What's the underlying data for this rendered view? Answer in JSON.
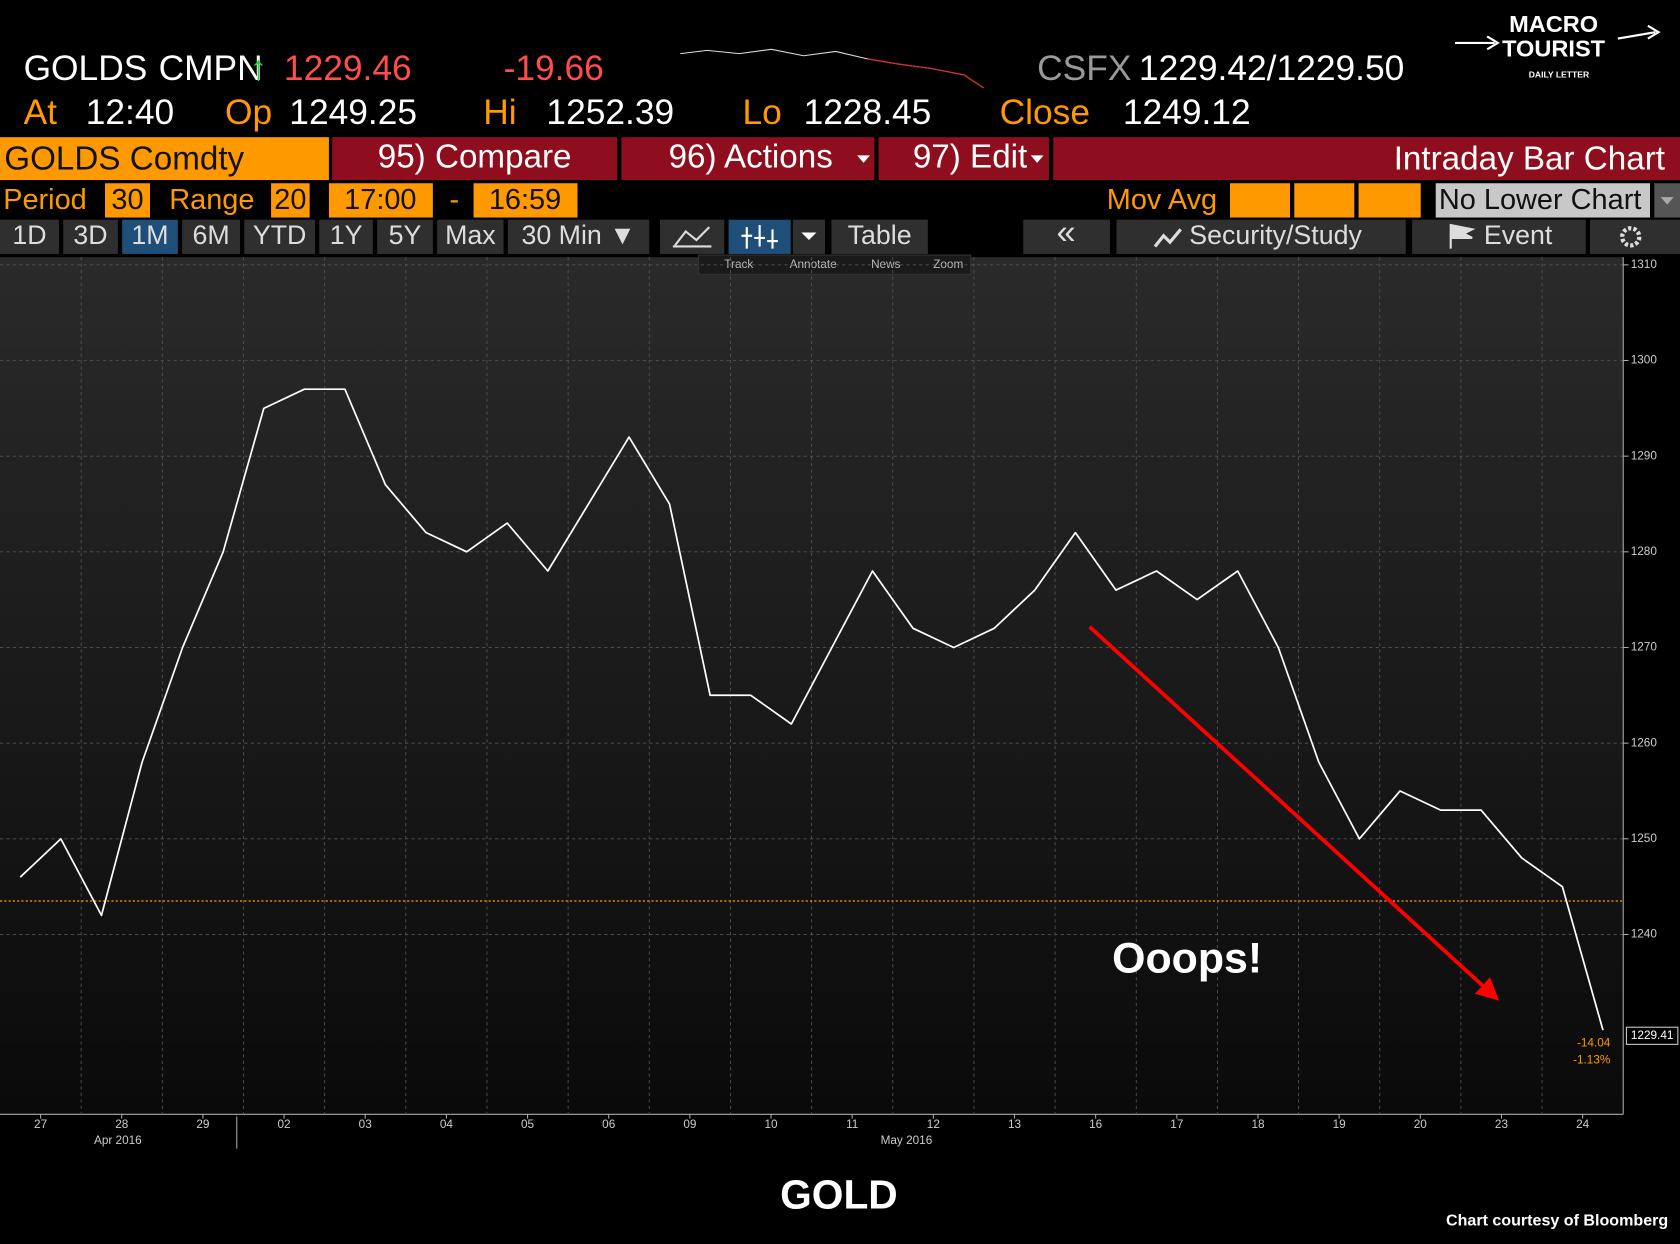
{
  "header": {
    "ticker": "GOLDS",
    "source": "CMPN",
    "arrow": "↑",
    "price": "1229.46",
    "change": "-19.66",
    "quote_source": "CSFX",
    "bid_ask": "1229.42/1229.50",
    "at_label": "At",
    "time": "12:40",
    "open_label": "Op",
    "open": "1249.25",
    "high_label": "Hi",
    "high": "1252.39",
    "low_label": "Lo",
    "low": "1228.45",
    "close_label": "Close",
    "close": "1249.12",
    "logo_line1": "MACRO",
    "logo_line2": "TOURIST",
    "logo_line3": "DAILY LETTER"
  },
  "toolbar": {
    "security": "GOLDS Comdty",
    "compare": "95) Compare",
    "actions": "96) Actions",
    "edit": "97) Edit",
    "chart_kind": "Intraday Bar Chart",
    "period_label": "Period",
    "period": "30",
    "range_label": "Range",
    "range": "20",
    "start": "17:00",
    "dash": "-",
    "end": "16:59",
    "mov_avg": "Mov Avg",
    "lower": "No Lower Chart",
    "tabs": [
      "1D",
      "3D",
      "1M",
      "6M",
      "YTD",
      "1Y",
      "5Y",
      "Max",
      "30 Min ▼"
    ],
    "table": "Table",
    "back": "«",
    "security_study": "Security/Study",
    "event": "Event",
    "tools": [
      "Track",
      "Annotate",
      "News",
      "Zoom"
    ]
  },
  "chart_data": {
    "type": "line",
    "title": "GOLD",
    "categories": [
      "27",
      null,
      "28",
      null,
      "29",
      null,
      "02",
      null,
      "03",
      null,
      "04",
      null,
      "05",
      null,
      "06",
      null,
      "09",
      null,
      "10",
      null,
      "11",
      null,
      "12",
      null,
      "13",
      null,
      "16",
      null,
      "17",
      null,
      "18",
      null,
      "19",
      null,
      "20",
      null,
      "23",
      null,
      "24",
      null
    ],
    "values": [
      1246,
      1250,
      1242,
      1258,
      1270,
      1280,
      1295,
      1297,
      1297,
      1287,
      1282,
      1280,
      1283,
      1278,
      1285,
      1292,
      1285,
      1265,
      1265,
      1262,
      1270,
      1278,
      1272,
      1270,
      1272,
      1276,
      1282,
      1276,
      1278,
      1275,
      1278,
      1270,
      1258,
      1250,
      1255,
      1253,
      1253,
      1248,
      1245,
      1230
    ],
    "color": "#ffffff",
    "month_labels": [
      "Apr 2016",
      "May 2016"
    ],
    "ylim": [
      1221.2,
      1310.8
    ],
    "yticks": [
      1240,
      1250,
      1260,
      1270,
      1280,
      1290,
      1300,
      1310
    ],
    "grid": true,
    "reference_line": 1243.5,
    "reference_color": "#ff9900",
    "last_value": 1229.41,
    "change_labels": [
      "-14.04",
      "-1.13%"
    ],
    "annotation": "Ooops!",
    "credit": "Chart courtesy of Bloomberg"
  }
}
